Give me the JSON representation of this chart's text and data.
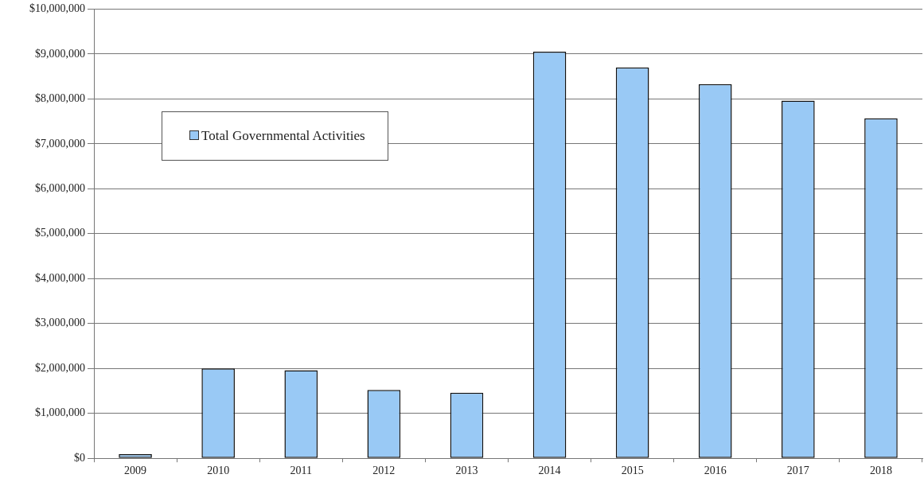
{
  "chart_data": {
    "type": "bar",
    "categories": [
      "2009",
      "2010",
      "2011",
      "2012",
      "2013",
      "2014",
      "2015",
      "2016",
      "2017",
      "2018"
    ],
    "series": [
      {
        "name": "Total Governmental Activities",
        "color": "#99c9f5",
        "values": [
          90000,
          2000000,
          1960000,
          1520000,
          1460000,
          9050000,
          8700000,
          8330000,
          7960000,
          7570000
        ]
      }
    ],
    "ylim": [
      0,
      10000000
    ],
    "yticks": [
      {
        "value": 0,
        "label": "$0"
      },
      {
        "value": 1000000,
        "label": "$1,000,000"
      },
      {
        "value": 2000000,
        "label": "$2,000,000"
      },
      {
        "value": 3000000,
        "label": "$3,000,000"
      },
      {
        "value": 4000000,
        "label": "$4,000,000"
      },
      {
        "value": 5000000,
        "label": "$5,000,000"
      },
      {
        "value": 6000000,
        "label": "$6,000,000"
      },
      {
        "value": 7000000,
        "label": "$7,000,000"
      },
      {
        "value": 8000000,
        "label": "$8,000,000"
      },
      {
        "value": 9000000,
        "label": "$9,000,000"
      },
      {
        "value": 10000000,
        "label": "$10,000,000"
      }
    ],
    "grid": "y",
    "legend": "top left"
  }
}
